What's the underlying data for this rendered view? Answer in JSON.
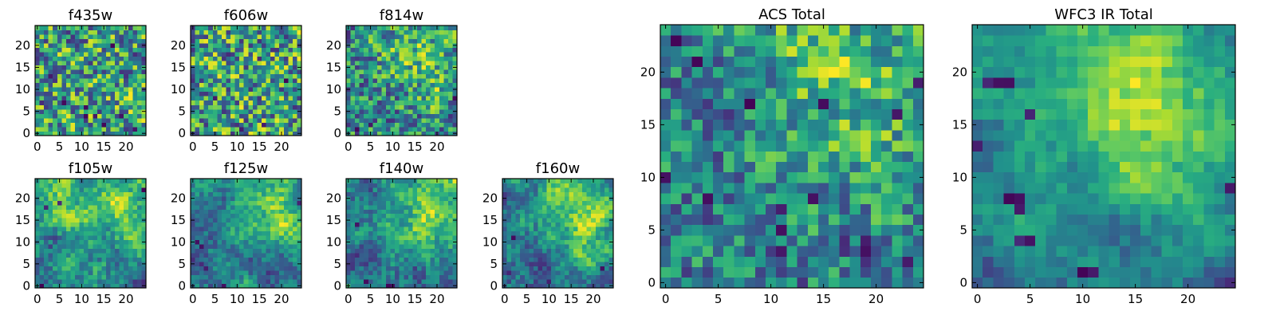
{
  "figure": {
    "background": "#ffffff"
  },
  "colormap": {
    "name": "viridis",
    "stops": [
      "#440154",
      "#472d7b",
      "#3b528b",
      "#2c728e",
      "#21918c",
      "#28ae80",
      "#5ec962",
      "#addc30",
      "#fde725"
    ]
  },
  "chart_data": [
    {
      "type": "heatmap",
      "title": "f435w",
      "xlabel": "",
      "ylabel": "",
      "grid_size": 25,
      "xlim": [
        0,
        24
      ],
      "ylim": [
        0,
        24
      ],
      "xticks": [
        "0",
        "5",
        "10",
        "15",
        "20"
      ],
      "yticks": [
        "0",
        "5",
        "10",
        "15",
        "20"
      ],
      "values_range": [
        0,
        1
      ],
      "description": "noisy field, mostly green/yellow-green, scattered dark cells",
      "seed": 11,
      "noise_amp": 1.0,
      "smooth_amp": 0.15,
      "blobs": [],
      "dark_cells": [
        [
          3,
          13
        ],
        [
          11,
          6
        ],
        [
          11,
          4
        ],
        [
          13,
          4
        ],
        [
          15,
          2
        ],
        [
          22,
          1
        ],
        [
          19,
          4
        ],
        [
          6,
          7
        ],
        [
          17,
          20
        ]
      ]
    },
    {
      "type": "heatmap",
      "title": "f606w",
      "xlabel": "",
      "ylabel": "",
      "grid_size": 25,
      "xlim": [
        0,
        24
      ],
      "ylim": [
        0,
        24
      ],
      "xticks": [
        "0",
        "5",
        "10",
        "15",
        "20"
      ],
      "yticks": [
        "0",
        "5",
        "10",
        "15",
        "20"
      ],
      "values_range": [
        0,
        1
      ],
      "seed": 23,
      "noise_amp": 1.0,
      "smooth_amp": 0.15,
      "blobs": [],
      "dark_cells": [
        [
          15,
          17
        ],
        [
          16,
          2
        ],
        [
          11,
          1
        ],
        [
          5,
          8
        ],
        [
          21,
          12
        ]
      ]
    },
    {
      "type": "heatmap",
      "title": "f814w",
      "xlabel": "",
      "ylabel": "",
      "grid_size": 25,
      "xlim": [
        0,
        24
      ],
      "ylim": [
        0,
        24
      ],
      "xticks": [
        "0",
        "5",
        "10",
        "15",
        "20"
      ],
      "yticks": [
        "0",
        "5",
        "10",
        "15",
        "20"
      ],
      "values_range": [
        0,
        1
      ],
      "seed": 37,
      "noise_amp": 0.9,
      "smooth_amp": 0.3,
      "blobs": [
        [
          13,
          20,
          5,
          0.5
        ],
        [
          20,
          10,
          4,
          0.4
        ]
      ],
      "dark_cells": [
        [
          2,
          1
        ],
        [
          24,
          8
        ],
        [
          5,
          2
        ]
      ]
    },
    {
      "type": "heatmap",
      "title": "f105w",
      "xlabel": "",
      "ylabel": "",
      "grid_size": 25,
      "xlim": [
        0,
        24
      ],
      "ylim": [
        0,
        24
      ],
      "xticks": [
        "0",
        "5",
        "10",
        "15",
        "20"
      ],
      "yticks": [
        "0",
        "5",
        "10",
        "15",
        "20"
      ],
      "values_range": [
        0,
        1
      ],
      "seed": 41,
      "noise_amp": 0.55,
      "smooth_amp": 0.9,
      "blobs": [
        [
          17,
          20,
          7,
          1.0
        ],
        [
          4,
          20,
          4,
          0.3
        ]
      ],
      "dark_cells": [
        [
          1,
          0
        ],
        [
          2,
          18
        ],
        [
          5,
          19
        ],
        [
          24,
          22
        ]
      ]
    },
    {
      "type": "heatmap",
      "title": "f125w",
      "xlabel": "",
      "ylabel": "",
      "grid_size": 25,
      "xlim": [
        0,
        24
      ],
      "ylim": [
        0,
        24
      ],
      "xticks": [
        "0",
        "5",
        "10",
        "15",
        "20"
      ],
      "yticks": [
        "0",
        "5",
        "10",
        "15",
        "20"
      ],
      "values_range": [
        0,
        1
      ],
      "seed": 53,
      "noise_amp": 0.55,
      "smooth_amp": 0.9,
      "blobs": [
        [
          18,
          20,
          7,
          1.0
        ],
        [
          20,
          12,
          4,
          0.5
        ]
      ],
      "dark_cells": [
        [
          1,
          10
        ],
        [
          2,
          9
        ],
        [
          3,
          4
        ],
        [
          7,
          0
        ],
        [
          24,
          19
        ]
      ]
    },
    {
      "type": "heatmap",
      "title": "f140w",
      "xlabel": "",
      "ylabel": "",
      "grid_size": 25,
      "xlim": [
        0,
        24
      ],
      "ylim": [
        0,
        24
      ],
      "xticks": [
        "0",
        "5",
        "10",
        "15",
        "20"
      ],
      "yticks": [
        "0",
        "5",
        "10",
        "15",
        "20"
      ],
      "values_range": [
        0,
        1
      ],
      "seed": 67,
      "noise_amp": 0.55,
      "smooth_amp": 0.9,
      "blobs": [
        [
          18,
          21,
          7,
          1.0
        ],
        [
          19,
          12,
          5,
          0.6
        ]
      ],
      "dark_cells": [
        [
          2,
          14
        ],
        [
          9,
          0
        ],
        [
          10,
          0
        ],
        [
          4,
          1
        ]
      ]
    },
    {
      "type": "heatmap",
      "title": "f160w",
      "xlabel": "",
      "ylabel": "",
      "grid_size": 25,
      "xlim": [
        0,
        24
      ],
      "ylim": [
        0,
        24
      ],
      "xticks": [
        "0",
        "5",
        "10",
        "15",
        "20"
      ],
      "yticks": [
        "0",
        "5",
        "10",
        "15",
        "20"
      ],
      "values_range": [
        0,
        1
      ],
      "seed": 79,
      "noise_amp": 0.55,
      "smooth_amp": 0.9,
      "blobs": [
        [
          16,
          20,
          7,
          1.0
        ],
        [
          18,
          12,
          5,
          0.6
        ]
      ],
      "dark_cells": [
        [
          2,
          11
        ],
        [
          1,
          3
        ],
        [
          10,
          1
        ],
        [
          22,
          4
        ]
      ]
    },
    {
      "type": "heatmap",
      "title": "ACS Total",
      "xlabel": "",
      "ylabel": "",
      "grid_size": 25,
      "xlim": [
        0,
        24
      ],
      "ylim": [
        0,
        24
      ],
      "xticks": [
        "0",
        "5",
        "10",
        "15",
        "20"
      ],
      "yticks": [
        "0",
        "5",
        "10",
        "15",
        "20"
      ],
      "values_range": [
        0,
        1
      ],
      "seed": 97,
      "noise_amp": 0.75,
      "smooth_amp": 0.5,
      "blobs": [
        [
          18,
          17,
          6,
          0.7
        ],
        [
          14,
          22,
          4,
          0.4
        ]
      ],
      "dark_cells": [
        [
          0,
          10
        ],
        [
          1,
          23
        ],
        [
          8,
          17
        ],
        [
          4,
          8
        ],
        [
          11,
          7
        ],
        [
          11,
          5
        ],
        [
          14,
          8
        ],
        [
          11,
          3
        ],
        [
          19,
          4
        ],
        [
          19,
          3
        ],
        [
          23,
          2
        ],
        [
          24,
          19
        ],
        [
          22,
          16
        ],
        [
          15,
          17
        ],
        [
          3,
          21
        ]
      ]
    },
    {
      "type": "heatmap",
      "title": "WFC3 IR Total",
      "xlabel": "",
      "ylabel": "",
      "grid_size": 25,
      "xlim": [
        0,
        24
      ],
      "ylim": [
        0,
        24
      ],
      "xticks": [
        "0",
        "5",
        "10",
        "15",
        "20"
      ],
      "yticks": [
        "0",
        "5",
        "10",
        "15",
        "20"
      ],
      "values_range": [
        0,
        1
      ],
      "seed": 131,
      "noise_amp": 0.35,
      "smooth_amp": 1.0,
      "blobs": [
        [
          16,
          19,
          8,
          1.0
        ],
        [
          17,
          12,
          6,
          0.6
        ],
        [
          6,
          21,
          4,
          0.2
        ]
      ],
      "dark_cells": [
        [
          1,
          19
        ],
        [
          2,
          19
        ],
        [
          3,
          19
        ],
        [
          3,
          8
        ],
        [
          4,
          7
        ],
        [
          4,
          8
        ],
        [
          10,
          1
        ],
        [
          11,
          1
        ],
        [
          4,
          4
        ],
        [
          5,
          4
        ],
        [
          24,
          9
        ],
        [
          0,
          13
        ],
        [
          5,
          16
        ]
      ]
    }
  ]
}
